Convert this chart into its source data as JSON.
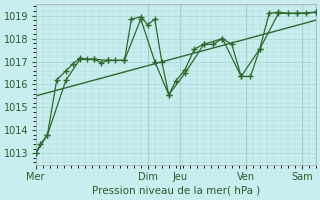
{
  "xlabel": "Pression niveau de la mer( hPa )",
  "bg_color": "#c8eef0",
  "grid_color": "#b0d8d8",
  "line_color": "#2d6a2d",
  "vline_color": "#8aaa8a",
  "xlim": [
    0,
    120
  ],
  "ylim": [
    1012.5,
    1019.5
  ],
  "yticks": [
    1013,
    1014,
    1015,
    1016,
    1017,
    1018,
    1019
  ],
  "day_labels": [
    "Mer",
    "Dim",
    "Jeu",
    "Ven",
    "Sam"
  ],
  "day_positions": [
    0,
    48,
    62,
    90,
    114
  ],
  "vline_positions": [
    0,
    48,
    62,
    90,
    114
  ],
  "main_x": [
    0,
    2,
    5,
    9,
    13,
    16,
    19,
    22,
    25,
    28,
    31,
    34,
    38,
    41,
    45,
    48,
    51,
    54,
    57,
    60,
    64,
    68,
    72,
    76,
    80,
    84,
    88,
    92,
    96,
    100,
    104,
    108,
    112,
    116,
    120
  ],
  "main_y": [
    1013.0,
    1013.4,
    1013.8,
    1016.2,
    1016.6,
    1016.9,
    1017.15,
    1017.1,
    1017.1,
    1016.95,
    1017.05,
    1017.05,
    1017.05,
    1018.85,
    1018.95,
    1018.6,
    1018.85,
    1017.0,
    1015.55,
    1016.15,
    1016.65,
    1017.55,
    1017.75,
    1017.75,
    1018.0,
    1017.75,
    1016.35,
    1016.35,
    1017.55,
    1019.1,
    1019.15,
    1019.1,
    1019.1,
    1019.1,
    1019.15
  ],
  "smooth_x": [
    0,
    5,
    13,
    19,
    25,
    31,
    38,
    45,
    51,
    57,
    64,
    72,
    80,
    88,
    96,
    104,
    112,
    120
  ],
  "smooth_y": [
    1013.0,
    1013.8,
    1016.2,
    1017.1,
    1017.1,
    1017.05,
    1017.05,
    1018.85,
    1017.0,
    1015.55,
    1016.5,
    1017.75,
    1018.0,
    1016.35,
    1017.55,
    1019.1,
    1019.1,
    1019.15
  ],
  "trend_x": [
    0,
    120
  ],
  "trend_y": [
    1015.5,
    1018.8
  ]
}
